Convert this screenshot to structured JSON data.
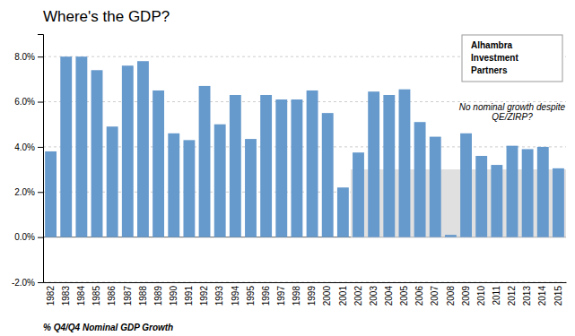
{
  "chart_data": {
    "type": "bar",
    "title": "Where's the GDP?",
    "ylabel": "% Q4/Q4 Nominal GDP Growth",
    "categories": [
      "1982",
      "1983",
      "1984",
      "1985",
      "1986",
      "1987",
      "1988",
      "1989",
      "1990",
      "1991",
      "1992",
      "1993",
      "1994",
      "1995",
      "1996",
      "1997",
      "1998",
      "1999",
      "2000",
      "2001",
      "2002",
      "2003",
      "2004",
      "2005",
      "2006",
      "2007",
      "2008",
      "2009",
      "2010",
      "2011",
      "2012",
      "2013",
      "2014",
      "2015"
    ],
    "values": [
      3.8,
      8.0,
      8.0,
      7.4,
      4.9,
      7.6,
      7.8,
      6.5,
      4.6,
      4.3,
      6.7,
      5.0,
      6.3,
      4.35,
      6.3,
      6.1,
      6.1,
      6.5,
      5.5,
      2.2,
      3.75,
      6.45,
      6.3,
      6.55,
      5.1,
      4.45,
      0.1,
      4.6,
      3.6,
      3.2,
      4.05,
      3.9,
      4.0,
      3.05
    ],
    "color": "#6699cc",
    "ylim": [
      -2.0,
      9.0
    ],
    "yticks": [
      {
        "value": -2.0,
        "label": "-2.0%"
      },
      {
        "value": 0.0,
        "label": "0.0%"
      },
      {
        "value": 2.0,
        "label": "2.0%"
      },
      {
        "value": 4.0,
        "label": "4.0%"
      },
      {
        "value": 6.0,
        "label": "6.0%"
      },
      {
        "value": 8.0,
        "label": "8.0%"
      }
    ],
    "grid": true,
    "annotations": [
      {
        "text": "No nominal growth despite\nQE/ZIRP?",
        "x": "2012",
        "y": 6.0
      }
    ],
    "shaded_region": {
      "from": "2002",
      "to": "2015",
      "y": [
        0.0,
        3.0
      ],
      "color": "#e0e0e0"
    },
    "logo_text": [
      "Alhambra",
      "Investment",
      "Partners"
    ]
  }
}
